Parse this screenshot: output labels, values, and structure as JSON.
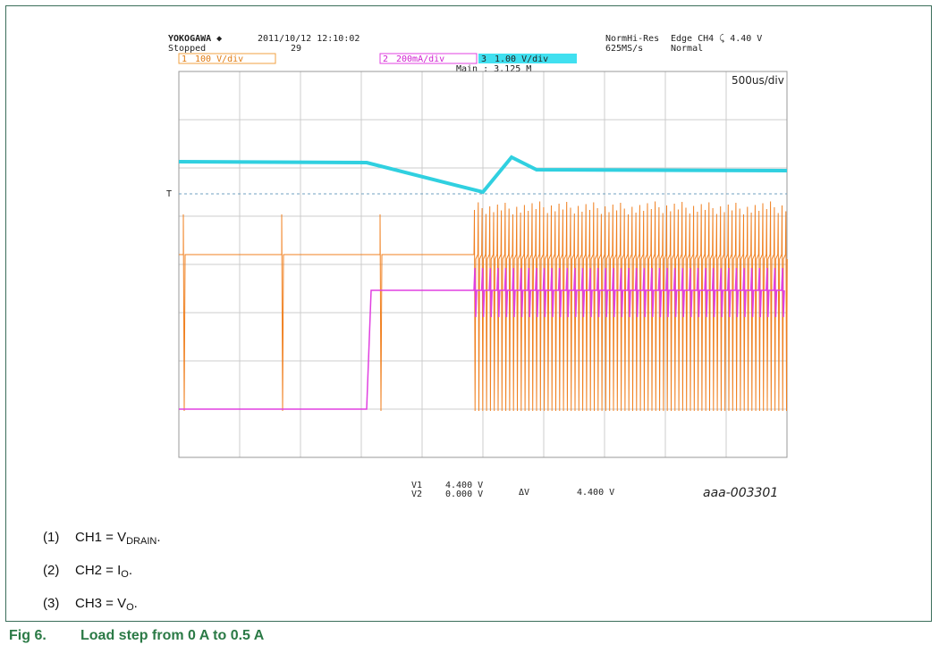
{
  "scope": {
    "brand": "YOKOGAWA ◆",
    "status": "Stopped",
    "datetime": "2011/10/12 12:10:02",
    "count": "29",
    "mode": "NormHi-Res",
    "sample_rate": "625MS/s",
    "trigger": "Edge CH4 ⤹ 4.40 V",
    "trigger_mode": "Normal",
    "channels": [
      {
        "number": "1",
        "scale": "100 V/div"
      },
      {
        "number": "2",
        "scale": "200mA/div"
      },
      {
        "number": "3",
        "scale": "1.00 V/div"
      }
    ],
    "timebase": "Main : 3.125 M",
    "time_div": "500us/div",
    "cursors": [
      {
        "name": "V1",
        "value": "4.400 V"
      },
      {
        "name": "V2",
        "value": "0.000 V"
      }
    ],
    "delta": {
      "name": "ΔV",
      "value": "4.400 V"
    },
    "figure_id": "aaa-003301"
  },
  "notes": [
    {
      "number": "(1)",
      "text": "CH1 = V",
      "subscript": "DRAIN",
      "suffix": "."
    },
    {
      "number": "(2)",
      "text": "CH2 = I",
      "subscript": "O",
      "suffix": "."
    },
    {
      "number": "(3)",
      "text": "CH3 = V",
      "subscript": "O",
      "suffix": "."
    }
  ],
  "caption": {
    "label": "Fig 6.",
    "text": "Load step from 0 A to 0.5 A"
  }
}
